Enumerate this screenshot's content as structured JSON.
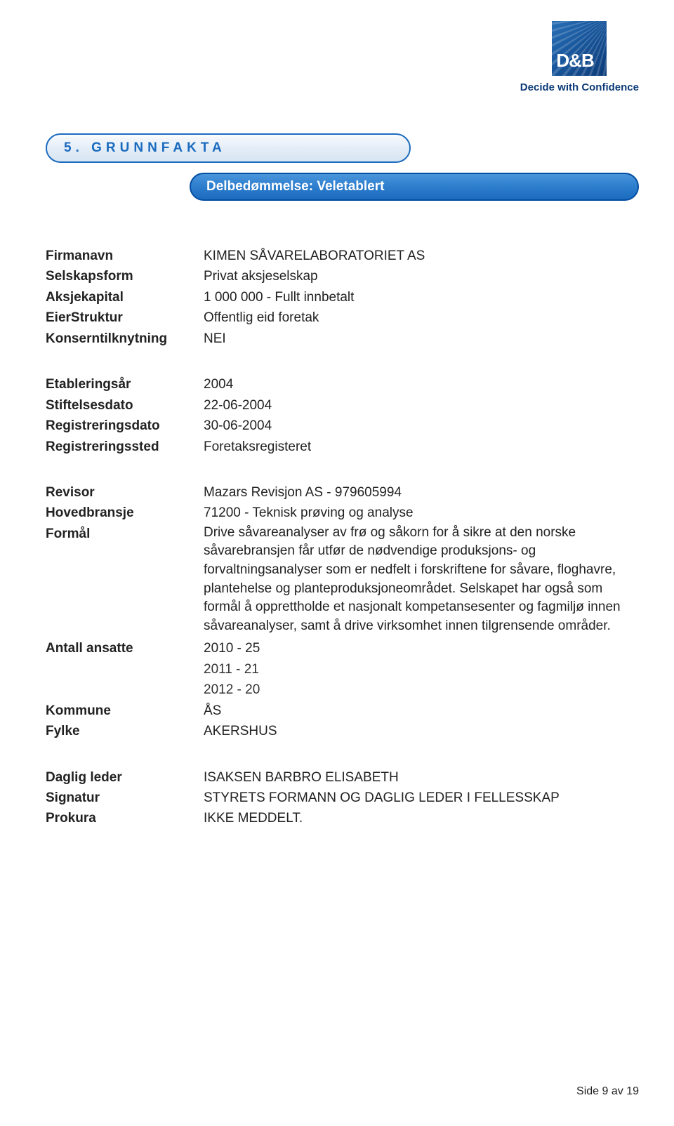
{
  "logo": {
    "text": "D&B",
    "tagline": "Decide with Confidence"
  },
  "section_title": "5. GRUNNFAKTA",
  "subsection": "Delbedømmelse: Veletablert",
  "group1": {
    "firmanavn_k": "Firmanavn",
    "firmanavn_v": "KIMEN SÅVARELABORATORIET AS",
    "selskapsform_k": "Selskapsform",
    "selskapsform_v": "Privat aksjeselskap",
    "aksjekapital_k": "Aksjekapital",
    "aksjekapital_v": "1 000 000 - Fullt innbetalt",
    "eier_k": "EierStruktur",
    "eier_v": "Offentlig eid foretak",
    "konsern_k": "Konserntilknytning",
    "konsern_v": "NEI"
  },
  "group2": {
    "etabl_k": "Etableringsår",
    "etabl_v": "2004",
    "stift_k": "Stiftelsesdato",
    "stift_v": "22-06-2004",
    "regdato_k": "Registreringsdato",
    "regdato_v": "30-06-2004",
    "regsted_k": "Registreringssted",
    "regsted_v": "Foretaksregisteret"
  },
  "group3": {
    "revisor_k": "Revisor",
    "revisor_v": "Mazars Revisjon AS - 979605994",
    "hoved_k": "Hovedbransje",
    "hoved_v": "71200 - Teknisk prøving og analyse",
    "formal_k": "Formål",
    "formal_v": "Drive såvareanalyser av frø og såkorn for å sikre at den norske såvarebransjen får utfør de nødvendige produksjons- og forvaltningsanalyser som er nedfelt i forskriftene for såvare, floghavre, plantehelse og planteproduksjoneområdet. Selskapet har også som formål å opprettholde et nasjonalt kompetansesenter og fagmiljø innen såvareanalyser, samt å drive virksomhet innen tilgrensende områder.",
    "ansatte_k": "Antall ansatte",
    "ansatte_1": "2010 - 25",
    "ansatte_2": "2011 - 21",
    "ansatte_3": "2012 - 20",
    "kommune_k": "Kommune",
    "kommune_v": "ÅS",
    "fylke_k": "Fylke",
    "fylke_v": "AKERSHUS"
  },
  "group4": {
    "daglig_k": "Daglig leder",
    "daglig_v": "ISAKSEN BARBRO ELISABETH",
    "sign_k": "Signatur",
    "sign_v": "STYRETS FORMANN OG DAGLIG LEDER I FELLESSKAP",
    "prokura_k": "Prokura",
    "prokura_v": "IKKE MEDDELT."
  },
  "footer": "Side 9 av 19",
  "colors": {
    "brand_blue": "#1b6bbf",
    "dark_blue": "#0d3b78",
    "border_blue": "#034ea2",
    "text": "#222222",
    "bg": "#ffffff"
  }
}
